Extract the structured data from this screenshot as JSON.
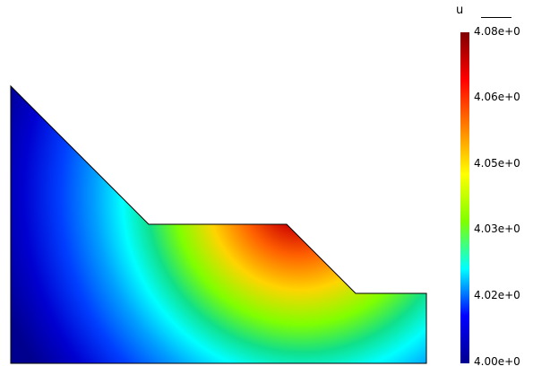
{
  "plot": {
    "variable_name": "u",
    "colorbar_ticks": [
      "4.08e+0",
      "4.06e+0",
      "4.05e+0",
      "4.03e+0",
      "4.02e+0",
      "4.00e+0"
    ],
    "colorbar_colors": [
      "#00008f",
      "#0000ff",
      "#00ffff",
      "#7fff00",
      "#ffff00",
      "#ff8000",
      "#ff0000",
      "#800000"
    ]
  }
}
